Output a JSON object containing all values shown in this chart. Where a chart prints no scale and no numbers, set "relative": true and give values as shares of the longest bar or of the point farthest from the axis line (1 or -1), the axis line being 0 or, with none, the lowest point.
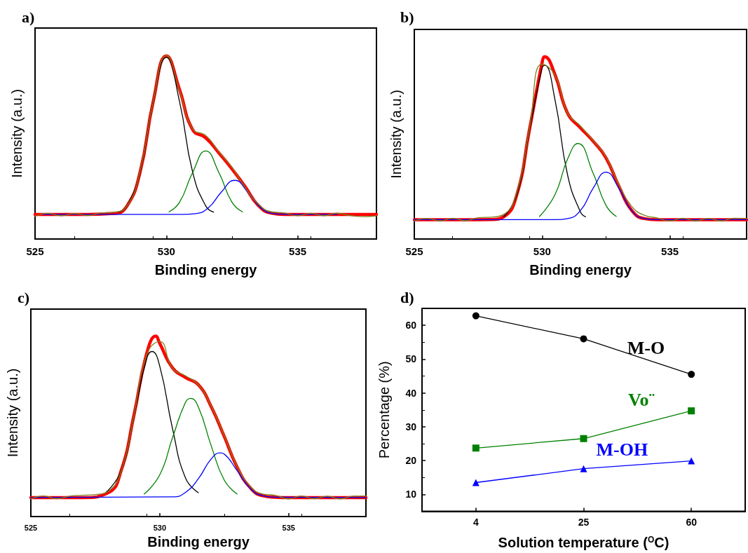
{
  "chart_data": [
    {
      "type": "line",
      "title": "a)",
      "xlabel": "Binding energy",
      "ylabel": "Intensity (a.u.)",
      "relative": true,
      "xlim": [
        525,
        538
      ],
      "xticks": [
        525,
        530,
        535
      ],
      "marker": "none",
      "line_style": "solid",
      "grid": false,
      "series": [
        {
          "color": "#ff0000",
          "x": [
            525,
            527,
            528,
            528.5,
            529,
            529.5,
            530,
            530.5,
            531,
            531.5,
            532,
            532.5,
            533,
            533.5,
            534,
            534.5,
            538
          ],
          "values": [
            0.134,
            0.134,
            0.139,
            0.18,
            0.365,
            0.75,
            0.998,
            0.816,
            0.596,
            0.551,
            0.469,
            0.382,
            0.285,
            0.183,
            0.141,
            0.134,
            0.134
          ]
        },
        {
          "color": "#000000",
          "x": [
            528.2,
            528.5,
            529,
            529.5,
            530,
            530.5,
            531,
            531.5,
            531.8
          ],
          "values": [
            0.147,
            0.18,
            0.365,
            0.75,
            0.99,
            0.75,
            0.365,
            0.18,
            0.147
          ]
        },
        {
          "color": "#008000",
          "x": [
            530.1,
            530.5,
            531,
            531.5,
            532,
            532.5,
            532.9
          ],
          "values": [
            0.148,
            0.2,
            0.362,
            0.48,
            0.362,
            0.2,
            0.148
          ]
        },
        {
          "color": "#0000ff",
          "x": [
            525.3,
            530.6,
            531.1,
            531.6,
            532.1,
            532.6,
            533.1,
            533.6,
            534.1,
            534.6,
            536.5
          ],
          "values": [
            0.134,
            0.134,
            0.138,
            0.17,
            0.257,
            0.32,
            0.257,
            0.17,
            0.138,
            0.134,
            0.134
          ]
        },
        {
          "color": "#808020",
          "x": [
            525,
            525.5,
            526,
            526.5,
            527,
            527.5,
            528,
            528.5,
            529,
            529.5,
            530,
            530.5,
            531,
            531.5,
            532,
            532.5,
            533,
            533.5,
            534,
            534.5,
            535,
            535.5,
            536,
            536.5,
            537,
            537.5,
            538
          ],
          "values": [
            0.124,
            0.14,
            0.127,
            0.138,
            0.128,
            0.142,
            0.146,
            0.18,
            0.37,
            0.75,
            1.0,
            0.81,
            0.6,
            0.565,
            0.475,
            0.39,
            0.28,
            0.19,
            0.148,
            0.142,
            0.127,
            0.14,
            0.127,
            0.141,
            0.128,
            0.122,
            0.126
          ]
        }
      ]
    },
    {
      "type": "line",
      "title": "b)",
      "xlabel": "Binding energy",
      "ylabel": "Intensity (a.u.)",
      "relative": true,
      "xlim": [
        525,
        538
      ],
      "xticks": [
        525,
        530,
        535
      ],
      "marker": "none",
      "line_style": "solid",
      "grid": false,
      "series": [
        {
          "color": "#ff0000",
          "x": [
            525,
            527,
            528,
            528.5,
            529,
            529.5,
            530,
            530.1,
            530.5,
            531,
            531.5,
            532,
            532.5,
            533,
            533.5,
            534,
            534.5,
            538
          ],
          "values": [
            0.106,
            0.106,
            0.107,
            0.122,
            0.238,
            0.596,
            0.968,
            1.0,
            0.903,
            0.689,
            0.61,
            0.536,
            0.445,
            0.291,
            0.158,
            0.112,
            0.106,
            0.106
          ]
        },
        {
          "color": "#000000",
          "x": [
            528.5,
            529,
            529.5,
            530,
            530.1,
            530.5,
            531,
            531.5,
            531.7
          ],
          "values": [
            0.122,
            0.238,
            0.593,
            0.94,
            0.953,
            0.767,
            0.349,
            0.148,
            0.122
          ]
        },
        {
          "color": "#008000",
          "x": [
            529.9,
            530.5,
            531,
            531.4,
            532,
            532.5,
            532.9
          ],
          "values": [
            0.124,
            0.242,
            0.44,
            0.524,
            0.36,
            0.184,
            0.124
          ]
        },
        {
          "color": "#0000ff",
          "x": [
            525,
            530.5,
            531,
            531.5,
            532,
            532.5,
            533,
            533.5,
            534,
            534.5,
            538
          ],
          "values": [
            0.106,
            0.106,
            0.112,
            0.156,
            0.279,
            0.367,
            0.279,
            0.156,
            0.112,
            0.106,
            0.106
          ]
        },
        {
          "color": "#808020",
          "x": [
            525,
            525.5,
            526,
            526.5,
            527,
            527.5,
            528,
            528.5,
            529,
            529.5,
            530,
            530.5,
            531,
            531.5,
            532,
            532.5,
            533,
            533.5,
            534,
            534.5,
            535,
            535.5,
            536,
            536.5,
            537,
            537.5,
            538
          ],
          "values": [
            0.098,
            0.113,
            0.099,
            0.114,
            0.1,
            0.117,
            0.12,
            0.135,
            0.25,
            0.6,
            0.96,
            0.9,
            0.69,
            0.62,
            0.54,
            0.45,
            0.3,
            0.18,
            0.13,
            0.116,
            0.099,
            0.114,
            0.099,
            0.113,
            0.099,
            0.114,
            0.113
          ]
        }
      ]
    },
    {
      "type": "line",
      "title": "c)",
      "xlabel": "Binding energy",
      "ylabel": "Intensity (a.u.)",
      "relative": true,
      "xlim": [
        525,
        538
      ],
      "xticks": [
        525,
        530,
        535
      ],
      "marker": "none",
      "line_style": "solid",
      "grid": false,
      "series": [
        {
          "color": "#ff0000",
          "x": [
            525,
            527,
            528,
            528.5,
            529,
            529.5,
            529.85,
            530,
            530.5,
            531,
            531.5,
            532,
            532.5,
            533,
            533.5,
            534,
            534.5,
            535,
            538
          ],
          "values": [
            0.105,
            0.105,
            0.132,
            0.253,
            0.562,
            0.907,
            1.0,
            0.96,
            0.823,
            0.771,
            0.73,
            0.608,
            0.445,
            0.275,
            0.162,
            0.115,
            0.107,
            0.105,
            0.105
          ]
        },
        {
          "color": "#000000",
          "x": [
            527.9,
            528.5,
            529,
            529.5,
            529.7,
            530,
            530.5,
            531,
            531.5
          ],
          "values": [
            0.132,
            0.253,
            0.558,
            0.878,
            0.915,
            0.834,
            0.485,
            0.214,
            0.132
          ]
        },
        {
          "color": "#008000",
          "x": [
            529.4,
            530,
            530.5,
            531,
            531.2,
            531.5,
            532,
            532.5,
            533
          ],
          "values": [
            0.125,
            0.231,
            0.439,
            0.633,
            0.655,
            0.607,
            0.391,
            0.203,
            0.125
          ]
        },
        {
          "color": "#0000ff",
          "x": [
            525,
            530.5,
            531,
            531.5,
            532,
            532.35,
            532.5,
            533,
            533.5,
            534,
            534.5,
            538
          ],
          "values": [
            0.105,
            0.109,
            0.134,
            0.21,
            0.32,
            0.353,
            0.347,
            0.255,
            0.157,
            0.115,
            0.107,
            0.105
          ]
        },
        {
          "color": "#808020",
          "x": [
            525,
            525.5,
            526,
            526.5,
            527,
            527.5,
            528,
            528.5,
            529,
            529.5,
            530,
            530.5,
            531,
            531.5,
            532,
            532.5,
            533,
            533.5,
            534,
            534.5,
            535,
            535.5,
            536,
            536.5,
            537,
            537.5,
            538
          ],
          "values": [
            0.098,
            0.114,
            0.099,
            0.113,
            0.118,
            0.122,
            0.14,
            0.25,
            0.56,
            0.9,
            0.97,
            0.82,
            0.78,
            0.73,
            0.61,
            0.45,
            0.28,
            0.17,
            0.125,
            0.117,
            0.098,
            0.114,
            0.099,
            0.113,
            0.098,
            0.113,
            0.114
          ]
        }
      ]
    },
    {
      "type": "line",
      "title": "d)",
      "xlabel": "Solution temperature ($^{O}$C)",
      "ylabel": "Percentage (%)",
      "categories": [
        "4",
        "25",
        "60"
      ],
      "ylim": [
        5,
        65
      ],
      "yticks": [
        10,
        20,
        30,
        40,
        50,
        60
      ],
      "line_style": "solid",
      "grid": false,
      "series": [
        {
          "name": "M-O",
          "color": "#000000",
          "marker": "circle",
          "values": [
            62.8,
            56.0,
            45.5
          ]
        },
        {
          "name": "Vo¨",
          "color": "#008000",
          "marker": "square",
          "values": [
            23.7,
            26.5,
            34.7
          ]
        },
        {
          "name": "M-OH",
          "color": "#0000ff",
          "marker": "triangle",
          "values": [
            13.5,
            17.6,
            19.9
          ]
        }
      ]
    }
  ]
}
